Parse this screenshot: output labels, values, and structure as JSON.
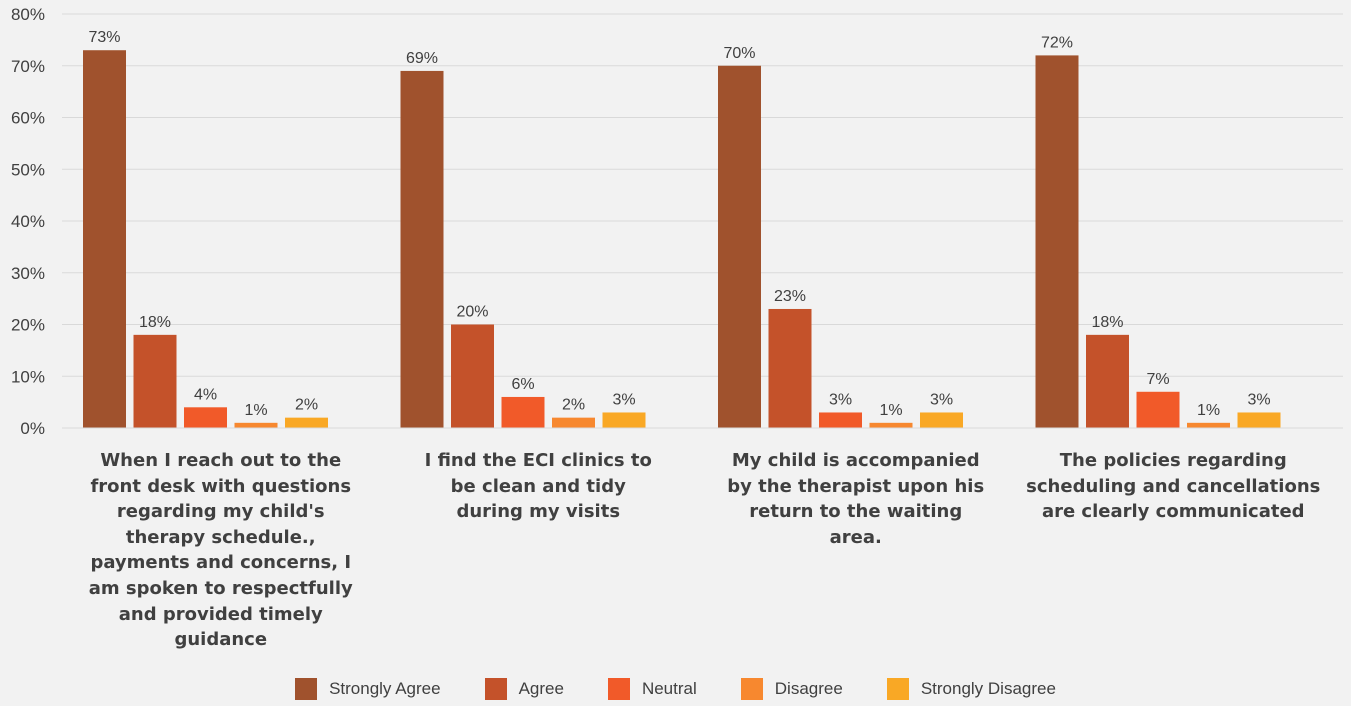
{
  "chart_data": {
    "type": "bar",
    "categories": [
      "When I reach out to the front desk with questions regarding my child's therapy schedule., payments and concerns, I am spoken to respectfully and provided timely guidance",
      "I find the ECI clinics to be clean and tidy during my visits",
      "My child is accompanied by the therapist upon his return to the waiting area.",
      "The policies regarding scheduling and cancellations are clearly communicated"
    ],
    "series": [
      {
        "name": "Strongly Agree",
        "color": "#a0522d",
        "values": [
          73,
          69,
          70,
          72
        ]
      },
      {
        "name": "Agree",
        "color": "#c4522a",
        "values": [
          18,
          20,
          23,
          18
        ]
      },
      {
        "name": "Neutral",
        "color": "#f15a29",
        "values": [
          4,
          6,
          3,
          7
        ]
      },
      {
        "name": "Disagree",
        "color": "#f7882f",
        "values": [
          1,
          2,
          1,
          1
        ]
      },
      {
        "name": "Strongly Disagree",
        "color": "#f9a825",
        "values": [
          2,
          3,
          3,
          3
        ]
      }
    ],
    "data_labels": [
      [
        "73%",
        "18%",
        "4%",
        "1%",
        "2%"
      ],
      [
        "69%",
        "20%",
        "6%",
        "2%",
        "3%"
      ],
      [
        "70%",
        "23%",
        "3%",
        "1%",
        "3%"
      ],
      [
        "72%",
        "18%",
        "7%",
        "1%",
        "3%"
      ]
    ],
    "y_ticks": [
      "0%",
      "10%",
      "20%",
      "30%",
      "40%",
      "50%",
      "60%",
      "70%",
      "80%"
    ],
    "ylim": [
      0,
      80
    ],
    "grid": true,
    "legend_position": "bottom"
  }
}
